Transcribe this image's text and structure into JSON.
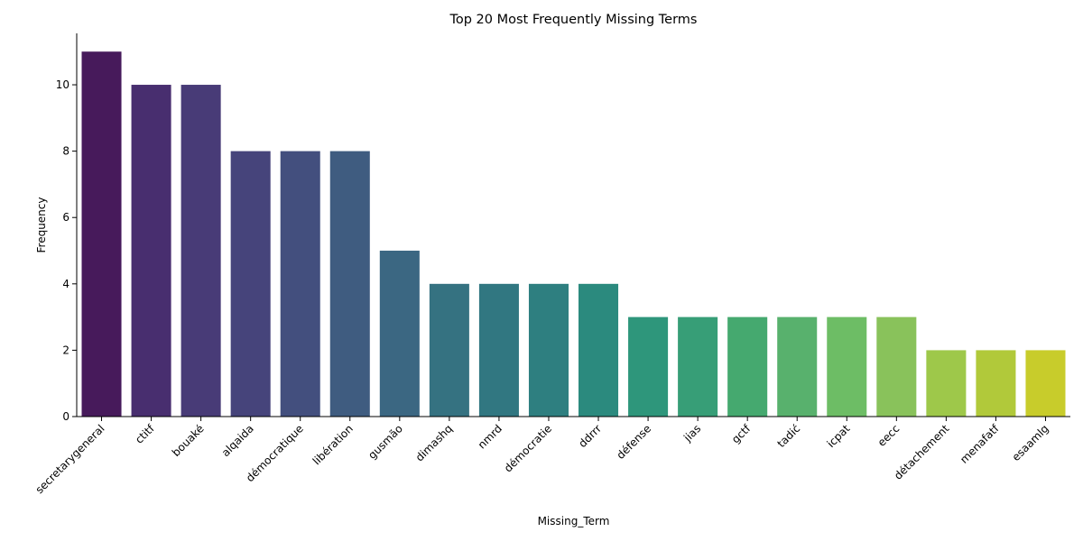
{
  "chart_data": {
    "type": "bar",
    "title": "Top 20 Most Frequently Missing Terms",
    "xlabel": "Missing_Term",
    "ylabel": "Frequency",
    "ylim": [
      0,
      11.55
    ],
    "yticks": [
      0,
      2,
      4,
      6,
      8,
      10
    ],
    "grid": false,
    "legend": "none",
    "palette": "viridis",
    "categories": [
      "secretarygeneral",
      "ctitf",
      "bouaké",
      "alqaida",
      "démocratique",
      "libération",
      "gusmão",
      "dimashq",
      "nmrd",
      "démocratie",
      "ddrrr",
      "défense",
      "jias",
      "gctf",
      "tadić",
      "icpat",
      "eecc",
      "détachement",
      "menafatf",
      "esaamlg"
    ],
    "values": [
      11,
      10,
      10,
      8,
      8,
      8,
      5,
      4,
      4,
      4,
      4,
      3,
      3,
      3,
      3,
      3,
      3,
      2,
      2,
      2
    ],
    "colors": [
      "#471a5b",
      "#482e6f",
      "#483b77",
      "#46447b",
      "#434f7e",
      "#3f5c80",
      "#3b6782",
      "#357281",
      "#317781",
      "#2e7f80",
      "#2b8a7e",
      "#2e967b",
      "#379e77",
      "#45a96f",
      "#58b16d",
      "#6dbd65",
      "#89c25b",
      "#9ec84a",
      "#b1c93a",
      "#c8cc2b"
    ]
  }
}
